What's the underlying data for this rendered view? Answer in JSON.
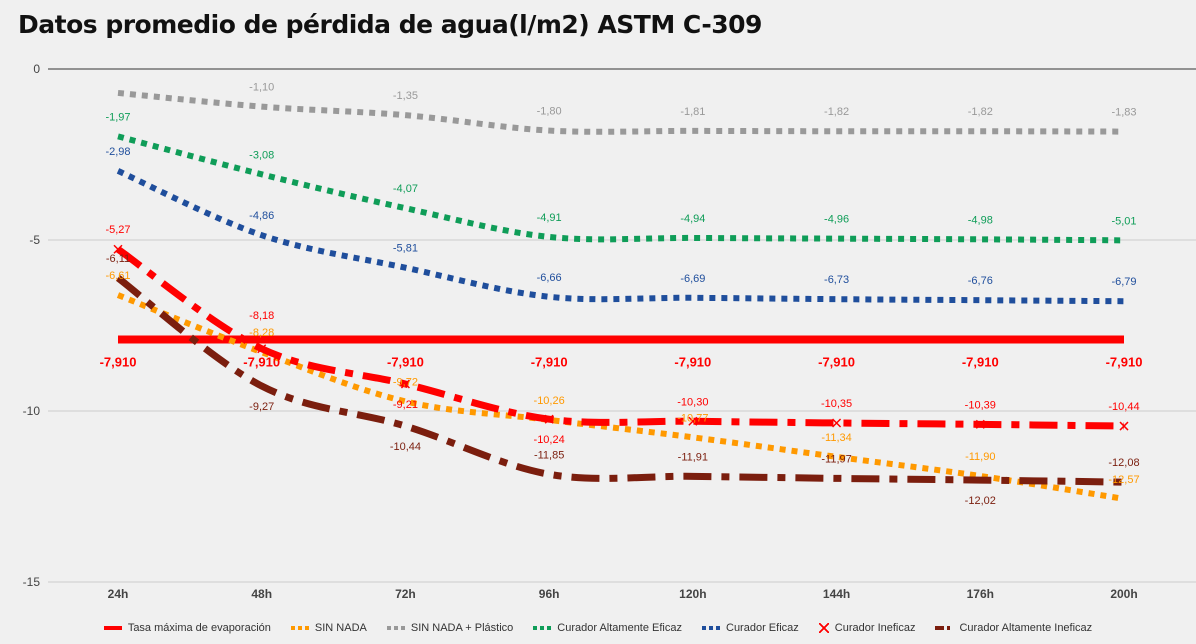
{
  "chart_data": {
    "type": "line",
    "title": "Datos promedio de pérdida de agua(l/m2) ASTM C-309",
    "categories": [
      "24h",
      "48h",
      "72h",
      "96h",
      "120h",
      "144h",
      "176h",
      "200h"
    ],
    "ylim": [
      -15,
      0
    ],
    "yticks": [
      "0",
      "-5",
      "-10",
      "-15"
    ],
    "grid": true,
    "legend_position": "bottom",
    "series": [
      {
        "name": "Tasa máxima de evaporación",
        "color": "#ff0000",
        "style": "solid",
        "values": [
          -7.91,
          -7.91,
          -7.91,
          -7.91,
          -7.91,
          -7.91,
          -7.91,
          -7.91
        ],
        "labels": [
          "-7,910",
          "-7,910",
          "-7,910",
          "-7,910",
          "-7,910",
          "-7,910",
          "-7,910",
          "-7,910"
        ]
      },
      {
        "name": "SIN NADA",
        "color": "#ff9900",
        "style": "dotted",
        "values": [
          -6.61,
          -8.28,
          -9.72,
          -10.26,
          -10.77,
          -11.34,
          -11.9,
          -12.57
        ],
        "labels": [
          "-6,61",
          "-8,28",
          "-9,72",
          "-10,26",
          "-10,77",
          "-11,34",
          "-11,90",
          "-12,57"
        ]
      },
      {
        "name": "SIN NADA + Plástico",
        "color": "#999999",
        "style": "dotted",
        "values": [
          -0.7,
          -1.1,
          -1.35,
          -1.8,
          -1.81,
          -1.82,
          -1.82,
          -1.83
        ],
        "labels": [
          "",
          "-1,10",
          "-1,35",
          "-1,80",
          "-1,81",
          "-1,82",
          "-1,82",
          "-1,83"
        ]
      },
      {
        "name": "Curador Altamente Eficaz",
        "color": "#0f9d58",
        "style": "dotted",
        "values": [
          -1.97,
          -3.08,
          -4.07,
          -4.91,
          -4.94,
          -4.96,
          -4.98,
          -5.01
        ],
        "labels": [
          "-1,97",
          "-3,08",
          "-4,07",
          "-4,91",
          "-4,94",
          "-4,96",
          "-4,98",
          "-5,01"
        ]
      },
      {
        "name": "Curador Eficaz",
        "color": "#1f4e9c",
        "style": "dotted",
        "values": [
          -2.98,
          -4.86,
          -5.81,
          -6.66,
          -6.69,
          -6.73,
          -6.76,
          -6.79
        ],
        "labels": [
          "-2,98",
          "-4,86",
          "-5,81",
          "-6,66",
          "-6,69",
          "-6,73",
          "-6,76",
          "-6,79"
        ]
      },
      {
        "name": "Curador Ineficaz",
        "color": "#ff0000",
        "style": "dashdot",
        "marker": "x",
        "values": [
          -5.27,
          -8.18,
          -9.21,
          -10.24,
          -10.3,
          -10.35,
          -10.39,
          -10.44
        ],
        "labels": [
          "-5,27",
          "-8,18",
          "-9,21",
          "-10,24",
          "-10,30",
          "-10,35",
          "-10,39",
          "-10,44"
        ]
      },
      {
        "name": "Curador Altamente Ineficaz",
        "color": "#7b1e0e",
        "style": "dashdot",
        "values": [
          -6.11,
          -9.27,
          -10.44,
          -11.85,
          -11.91,
          -11.97,
          -12.02,
          -12.08
        ],
        "labels": [
          "-6,11",
          "-9,27",
          "-10,44",
          "-11,85",
          "-11,91",
          "-11,97",
          "-12,02",
          "-12,08"
        ]
      }
    ]
  }
}
